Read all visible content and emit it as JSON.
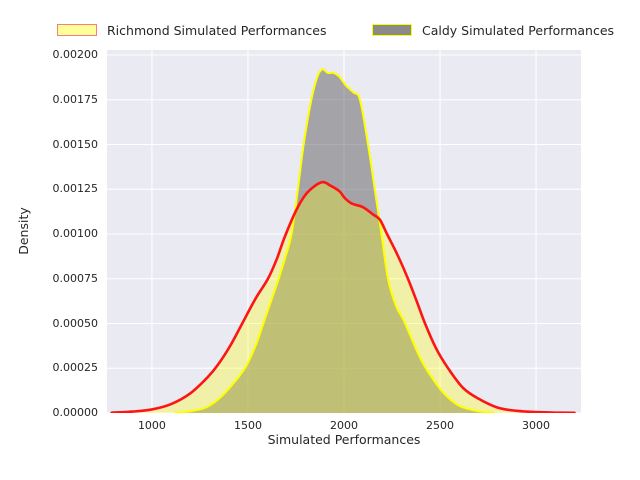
{
  "chart_data": {
    "type": "area",
    "subtype": "kde-density",
    "title": "",
    "xlabel": "Simulated Performances",
    "ylabel": "Density",
    "xlim": [
      766,
      3234
    ],
    "ylim": [
      0,
      0.002028
    ],
    "grid": true,
    "legend_position": "top",
    "colors": {
      "figure_bg": "#ffffff",
      "axes_bg": "#eaeaf2",
      "grid": "#ffffff",
      "text": "#262626"
    },
    "xticks": [
      {
        "value": 1000,
        "label": "1000"
      },
      {
        "value": 1500,
        "label": "1500"
      },
      {
        "value": 2000,
        "label": "2000"
      },
      {
        "value": 2500,
        "label": "2500"
      },
      {
        "value": 3000,
        "label": "3000"
      }
    ],
    "yticks": [
      {
        "value": 0.0,
        "label": "0.00000"
      },
      {
        "value": 0.00025,
        "label": "0.00025"
      },
      {
        "value": 0.0005,
        "label": "0.00050"
      },
      {
        "value": 0.00075,
        "label": "0.00075"
      },
      {
        "value": 0.001,
        "label": "0.00100"
      },
      {
        "value": 0.00125,
        "label": "0.00125"
      },
      {
        "value": 0.0015,
        "label": "0.00150"
      },
      {
        "value": 0.00175,
        "label": "0.00175"
      },
      {
        "value": 0.002,
        "label": "0.00200"
      }
    ],
    "series": [
      {
        "name": "Richmond Simulated Performances",
        "fill": "rgba(255,255,0,0.30)",
        "stroke": "#ff1414",
        "stroke_width": 2.6,
        "legend_fill": "#ffff99",
        "legend_edge": "#f87c7c",
        "peak": {
          "x": 1891,
          "density": 0.00129
        },
        "points": [
          [
            790,
            2e-06
          ],
          [
            900,
            8e-06
          ],
          [
            1000,
            2e-05
          ],
          [
            1100,
            5e-05
          ],
          [
            1200,
            0.00011
          ],
          [
            1290,
            0.0002
          ],
          [
            1344,
            0.00027
          ],
          [
            1410,
            0.00038
          ],
          [
            1470,
            0.0005
          ],
          [
            1540,
            0.00064
          ],
          [
            1604,
            0.00075
          ],
          [
            1650,
            0.00086
          ],
          [
            1690,
            0.00098
          ],
          [
            1750,
            0.00113
          ],
          [
            1800,
            0.00122
          ],
          [
            1850,
            0.00127
          ],
          [
            1891,
            0.00129
          ],
          [
            1930,
            0.00127
          ],
          [
            1975,
            0.00124
          ],
          [
            2005,
            0.0012
          ],
          [
            2041,
            0.00117
          ],
          [
            2099,
            0.00115
          ],
          [
            2150,
            0.00111
          ],
          [
            2187,
            0.00108
          ],
          [
            2224,
            0.001
          ],
          [
            2280,
            0.00088
          ],
          [
            2333,
            0.00075
          ],
          [
            2380,
            0.00062
          ],
          [
            2422,
            0.0005
          ],
          [
            2480,
            0.00036
          ],
          [
            2542,
            0.00025
          ],
          [
            2620,
            0.00014
          ],
          [
            2700,
            8e-05
          ],
          [
            2800,
            3e-05
          ],
          [
            2900,
            1.2e-05
          ],
          [
            3000,
            5e-06
          ],
          [
            3100,
            2e-06
          ],
          [
            3200,
            1e-06
          ]
        ]
      },
      {
        "name": "Caldy Simulated Performances",
        "fill": "rgba(105,105,105,0.54)",
        "stroke": "#ffff00",
        "stroke_width": 2.0,
        "legend_fill": "#8a8a8a",
        "legend_edge": "#ffff00",
        "peak": {
          "x": 1888,
          "density": 0.00192
        },
        "points": [
          [
            1120,
            2e-06
          ],
          [
            1200,
            1e-05
          ],
          [
            1280,
            3e-05
          ],
          [
            1350,
            8e-05
          ],
          [
            1420,
            0.00016
          ],
          [
            1490,
            0.00026
          ],
          [
            1545,
            0.00039
          ],
          [
            1580,
            0.0005
          ],
          [
            1625,
            0.00064
          ],
          [
            1663,
            0.00076
          ],
          [
            1700,
            0.00089
          ],
          [
            1727,
            0.001
          ],
          [
            1760,
            0.00125
          ],
          [
            1790,
            0.0015
          ],
          [
            1830,
            0.00175
          ],
          [
            1862,
            0.00188
          ],
          [
            1888,
            0.00192
          ],
          [
            1915,
            0.0019
          ],
          [
            1945,
            0.0019
          ],
          [
            1975,
            0.00188
          ],
          [
            2010,
            0.00183
          ],
          [
            2050,
            0.00179
          ],
          [
            2083,
            0.00175
          ],
          [
            2125,
            0.0015
          ],
          [
            2160,
            0.00125
          ],
          [
            2195,
            0.001
          ],
          [
            2229,
            0.00075
          ],
          [
            2270,
            0.0006
          ],
          [
            2310,
            0.00052
          ],
          [
            2350,
            0.00042
          ],
          [
            2400,
            0.0003
          ],
          [
            2450,
            0.00021
          ],
          [
            2520,
            0.00011
          ],
          [
            2600,
            4e-05
          ],
          [
            2700,
            1e-05
          ],
          [
            2780,
            2e-06
          ]
        ]
      }
    ]
  }
}
